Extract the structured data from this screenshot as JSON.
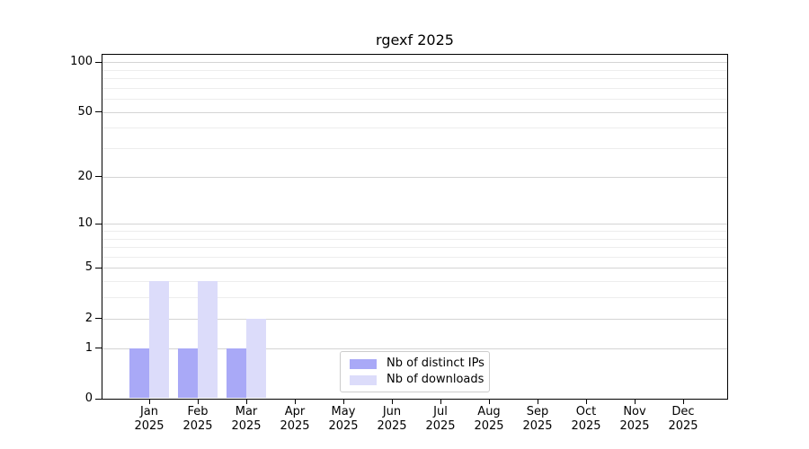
{
  "chart_data": {
    "type": "bar",
    "title": "rgexf 2025",
    "categories": [
      "Jan 2025",
      "Feb 2025",
      "Mar 2025",
      "Apr 2025",
      "May 2025",
      "Jun 2025",
      "Jul 2025",
      "Aug 2025",
      "Sep 2025",
      "Oct 2025",
      "Nov 2025",
      "Dec 2025"
    ],
    "series": [
      {
        "name": "Nb of distinct IPs",
        "color": "#a9a9f7",
        "values": [
          1,
          1,
          1,
          0,
          0,
          0,
          0,
          0,
          0,
          0,
          0,
          0
        ]
      },
      {
        "name": "Nb of downloads",
        "color": "#dcdcfa",
        "values": [
          4,
          4,
          2,
          0,
          0,
          0,
          0,
          0,
          0,
          0,
          0,
          0
        ]
      }
    ],
    "xlabel": "",
    "ylabel": "",
    "yscale": "log1p",
    "ylim": [
      0,
      110
    ],
    "yticks": [
      0,
      1,
      2,
      5,
      10,
      20,
      50,
      100
    ],
    "minor_yticks": [
      3,
      4,
      6,
      7,
      8,
      9,
      30,
      40,
      60,
      70,
      80,
      90
    ],
    "grid": "horizontal",
    "legend_position": "lower-center"
  }
}
